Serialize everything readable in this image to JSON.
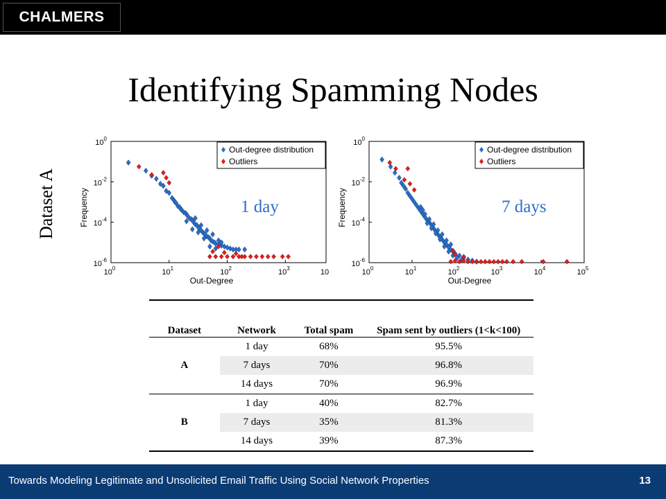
{
  "header": {
    "logo_text": "CHALMERS"
  },
  "title": "Identifying Spamming Nodes",
  "side_label": "Dataset A",
  "chart_data": [
    {
      "type": "scatter",
      "annotation": "1 day",
      "xlabel": "Out-Degree",
      "ylabel": "Frequency",
      "x_scale": "log",
      "y_scale": "log",
      "xlim_exp": [
        0,
        3.7
      ],
      "ylim_exp": [
        -6,
        0
      ],
      "x_ticks": [
        {
          "base": "10",
          "exp": "0"
        },
        {
          "base": "10",
          "exp": "1"
        },
        {
          "base": "10",
          "exp": "2"
        },
        {
          "base": "10",
          "exp": "3"
        },
        {
          "base": "10",
          "exp": ""
        }
      ],
      "y_ticks": [
        {
          "base": "10",
          "exp": "0"
        },
        {
          "base": "10",
          "exp": "-2"
        },
        {
          "base": "10",
          "exp": "-4"
        },
        {
          "base": "10",
          "exp": "-6"
        }
      ],
      "legend_position": "top-right",
      "series": [
        {
          "name": "Out-degree distribution",
          "color": "#2a6fc8",
          "marker": "diamond",
          "points": [
            [
              0.3,
              -1.05
            ],
            [
              0.6,
              -1.45
            ],
            [
              0.7,
              -1.7
            ],
            [
              0.78,
              -1.85
            ],
            [
              0.85,
              -2.1
            ],
            [
              0.9,
              -2.2
            ],
            [
              0.95,
              -2.45
            ],
            [
              1.0,
              -2.55
            ],
            [
              1.05,
              -2.8
            ],
            [
              1.08,
              -2.9
            ],
            [
              1.1,
              -3.0
            ],
            [
              1.12,
              -3.05
            ],
            [
              1.15,
              -3.2
            ],
            [
              1.18,
              -3.25
            ],
            [
              1.2,
              -3.35
            ],
            [
              1.22,
              -3.4
            ],
            [
              1.25,
              -3.5
            ],
            [
              1.28,
              -3.55
            ],
            [
              1.3,
              -3.6
            ],
            [
              1.32,
              -3.7
            ],
            [
              1.35,
              -3.8
            ],
            [
              1.38,
              -3.85
            ],
            [
              1.4,
              -3.9
            ],
            [
              1.42,
              -4.0
            ],
            [
              1.45,
              -4.1
            ],
            [
              1.48,
              -4.15
            ],
            [
              1.5,
              -4.25
            ],
            [
              1.52,
              -4.3
            ],
            [
              1.55,
              -4.4
            ],
            [
              1.58,
              -4.5
            ],
            [
              1.6,
              -4.55
            ],
            [
              1.62,
              -4.6
            ],
            [
              1.65,
              -4.7
            ],
            [
              1.68,
              -4.75
            ],
            [
              1.7,
              -4.8
            ],
            [
              1.72,
              -4.9
            ],
            [
              1.75,
              -4.95
            ],
            [
              1.78,
              -5.0
            ],
            [
              1.8,
              -5.05
            ],
            [
              1.85,
              -5.1
            ],
            [
              1.9,
              -5.15
            ],
            [
              1.95,
              -5.2
            ],
            [
              2.0,
              -5.25
            ],
            [
              2.05,
              -5.3
            ],
            [
              2.1,
              -5.35
            ],
            [
              2.15,
              -5.35
            ],
            [
              2.2,
              -5.35
            ],
            [
              2.3,
              -5.35
            ],
            [
              1.3,
              -3.95
            ],
            [
              1.4,
              -4.35
            ],
            [
              1.5,
              -4.5
            ],
            [
              1.6,
              -4.8
            ],
            [
              1.7,
              -5.2
            ],
            [
              1.8,
              -5.3
            ],
            [
              1.9,
              -5.0
            ],
            [
              1.45,
              -3.8
            ],
            [
              1.55,
              -4.15
            ],
            [
              1.65,
              -4.4
            ],
            [
              1.75,
              -4.6
            ],
            [
              1.85,
              -4.9
            ]
          ]
        },
        {
          "name": "Outliers",
          "color": "#e02020",
          "marker": "star",
          "points": [
            [
              0.48,
              -1.25
            ],
            [
              0.7,
              -1.65
            ],
            [
              0.9,
              -1.55
            ],
            [
              1.0,
              -2.05
            ],
            [
              0.95,
              -1.8
            ],
            [
              1.7,
              -5.7
            ],
            [
              1.8,
              -5.7
            ],
            [
              1.9,
              -5.7
            ],
            [
              2.0,
              -5.7
            ],
            [
              2.1,
              -5.7
            ],
            [
              2.2,
              -5.7
            ],
            [
              2.25,
              -5.7
            ],
            [
              2.3,
              -5.7
            ],
            [
              2.4,
              -5.7
            ],
            [
              2.5,
              -5.7
            ],
            [
              2.6,
              -5.7
            ],
            [
              2.7,
              -5.7
            ],
            [
              2.8,
              -5.7
            ],
            [
              2.95,
              -5.7
            ],
            [
              3.05,
              -5.7
            ],
            [
              1.75,
              -5.45
            ],
            [
              1.95,
              -5.5
            ],
            [
              2.15,
              -5.55
            ],
            [
              1.85,
              -5.2
            ]
          ]
        }
      ]
    },
    {
      "type": "scatter",
      "annotation": "7 days",
      "xlabel": "Out-Degree",
      "ylabel": "Frequency",
      "x_scale": "log",
      "y_scale": "log",
      "xlim_exp": [
        0,
        5
      ],
      "ylim_exp": [
        -6,
        0
      ],
      "x_ticks": [
        {
          "base": "10",
          "exp": "0"
        },
        {
          "base": "10",
          "exp": "1"
        },
        {
          "base": "10",
          "exp": "2"
        },
        {
          "base": "10",
          "exp": "3"
        },
        {
          "base": "10",
          "exp": "4"
        },
        {
          "base": "10",
          "exp": "5"
        }
      ],
      "y_ticks": [
        {
          "base": "10",
          "exp": "0"
        },
        {
          "base": "10",
          "exp": "-2"
        },
        {
          "base": "10",
          "exp": "-4"
        },
        {
          "base": "10",
          "exp": "-6"
        }
      ],
      "legend_position": "top-right",
      "series": [
        {
          "name": "Out-degree distribution",
          "color": "#2a6fc8",
          "marker": "diamond",
          "points": [
            [
              0.3,
              -0.9
            ],
            [
              0.5,
              -1.25
            ],
            [
              0.6,
              -1.55
            ],
            [
              0.7,
              -1.8
            ],
            [
              0.75,
              -2.05
            ],
            [
              0.8,
              -2.2
            ],
            [
              0.85,
              -2.35
            ],
            [
              0.9,
              -2.55
            ],
            [
              0.95,
              -2.7
            ],
            [
              1.0,
              -2.85
            ],
            [
              1.05,
              -3.0
            ],
            [
              1.1,
              -3.15
            ],
            [
              1.15,
              -3.3
            ],
            [
              1.2,
              -3.45
            ],
            [
              1.25,
              -3.6
            ],
            [
              1.3,
              -3.75
            ],
            [
              1.35,
              -3.9
            ],
            [
              1.4,
              -4.0
            ],
            [
              1.45,
              -4.15
            ],
            [
              1.5,
              -4.3
            ],
            [
              1.55,
              -4.45
            ],
            [
              1.6,
              -4.6
            ],
            [
              1.65,
              -4.75
            ],
            [
              1.7,
              -4.85
            ],
            [
              1.75,
              -5.0
            ],
            [
              1.8,
              -5.1
            ],
            [
              1.85,
              -5.25
            ],
            [
              1.9,
              -5.35
            ],
            [
              1.95,
              -5.45
            ],
            [
              2.0,
              -5.55
            ],
            [
              2.1,
              -5.65
            ],
            [
              2.2,
              -5.75
            ],
            [
              2.3,
              -5.85
            ],
            [
              2.4,
              -5.9
            ],
            [
              2.5,
              -5.95
            ],
            [
              1.3,
              -3.6
            ],
            [
              1.4,
              -3.85
            ],
            [
              1.5,
              -4.1
            ],
            [
              1.6,
              -4.4
            ],
            [
              1.7,
              -4.6
            ],
            [
              1.8,
              -4.9
            ],
            [
              1.9,
              -5.1
            ],
            [
              1.35,
              -4.05
            ],
            [
              1.45,
              -4.3
            ],
            [
              1.55,
              -4.55
            ],
            [
              1.65,
              -4.85
            ],
            [
              1.75,
              -5.2
            ],
            [
              1.85,
              -5.45
            ],
            [
              1.95,
              -5.65
            ],
            [
              1.2,
              -3.25
            ],
            [
              1.25,
              -3.4
            ],
            [
              2.05,
              -5.75
            ],
            [
              2.15,
              -5.85
            ]
          ]
        },
        {
          "name": "Outliers",
          "color": "#e02020",
          "marker": "star",
          "points": [
            [
              0.48,
              -1.05
            ],
            [
              0.62,
              -1.35
            ],
            [
              0.9,
              -1.35
            ],
            [
              0.82,
              -1.9
            ],
            [
              0.95,
              -2.1
            ],
            [
              1.05,
              -2.4
            ],
            [
              1.9,
              -5.95
            ],
            [
              2.0,
              -5.9
            ],
            [
              2.1,
              -5.95
            ],
            [
              2.2,
              -5.9
            ],
            [
              2.3,
              -5.95
            ],
            [
              2.4,
              -5.95
            ],
            [
              2.5,
              -5.95
            ],
            [
              2.6,
              -5.95
            ],
            [
              2.7,
              -5.95
            ],
            [
              2.8,
              -5.95
            ],
            [
              2.9,
              -5.95
            ],
            [
              3.0,
              -5.95
            ],
            [
              3.1,
              -5.95
            ],
            [
              3.2,
              -5.95
            ],
            [
              3.35,
              -5.95
            ],
            [
              3.55,
              -5.95
            ],
            [
              4.05,
              -5.95
            ],
            [
              4.6,
              -5.95
            ],
            [
              2.0,
              -5.6
            ],
            [
              2.2,
              -5.7
            ],
            [
              1.95,
              -5.4
            ]
          ]
        }
      ]
    }
  ],
  "table": {
    "headers": [
      "Dataset",
      "Network",
      "Total spam",
      "Spam sent by outliers (1<k<100)"
    ],
    "groups": [
      {
        "dataset": "A",
        "rows": [
          {
            "network": "1 day",
            "total": "68%",
            "outliers": "95.5%"
          },
          {
            "network": "7 days",
            "total": "70%",
            "outliers": "96.8%"
          },
          {
            "network": "14 days",
            "total": "70%",
            "outliers": "96.9%"
          }
        ]
      },
      {
        "dataset": "B",
        "rows": [
          {
            "network": "1 day",
            "total": "40%",
            "outliers": "82.7%"
          },
          {
            "network": "7 days",
            "total": "35%",
            "outliers": "81.3%"
          },
          {
            "network": "14 days",
            "total": "39%",
            "outliers": "87.3%"
          }
        ]
      }
    ]
  },
  "footer": {
    "text": "Towards Modeling Legitimate and Unsolicited Email Traffic Using Social Network Properties",
    "page": "13"
  }
}
